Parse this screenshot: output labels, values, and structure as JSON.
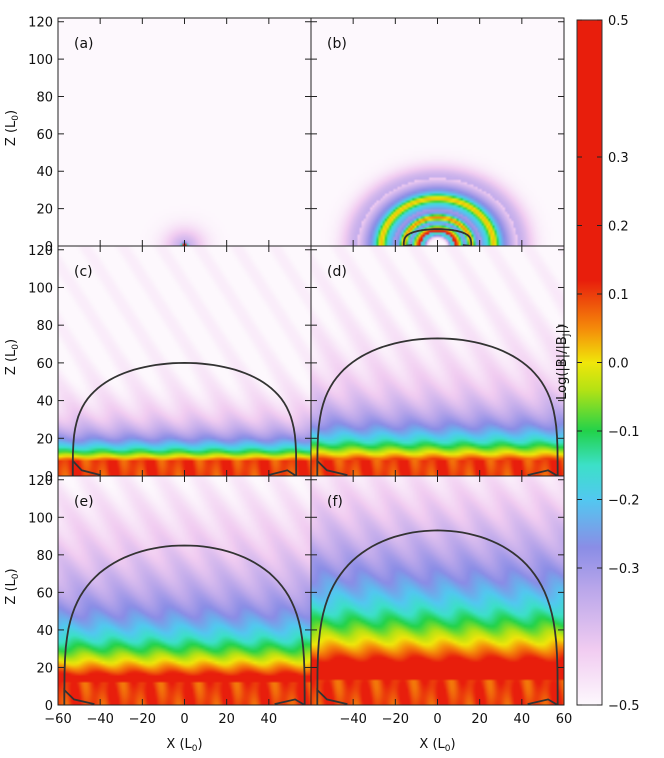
{
  "chart_data": {
    "type": "heatmap",
    "colorbar": {
      "label": "Log(|B|/|B",
      "label_sub": "J",
      "label_end": "|)",
      "range": [
        -0.5,
        0.5
      ],
      "ticks": [
        0.5,
        0.3,
        0.2,
        0.1,
        0.0,
        -0.1,
        -0.2,
        -0.3,
        -0.5
      ],
      "tick_labels": [
        "0.5",
        "0.3",
        "0.2",
        "0.1",
        "0.0",
        "−0.1",
        "−0.2",
        "−0.3",
        "−0.5"
      ],
      "stops": [
        {
          "v": -0.5,
          "color": "#fdf8fd"
        },
        {
          "v": -0.42,
          "color": "#f1ccf1"
        },
        {
          "v": -0.33,
          "color": "#b9a6ea"
        },
        {
          "v": -0.27,
          "color": "#8a8de6"
        },
        {
          "v": -0.2,
          "color": "#52c8f0"
        },
        {
          "v": -0.15,
          "color": "#3ce0c8"
        },
        {
          "v": -0.1,
          "color": "#22d24a"
        },
        {
          "v": -0.04,
          "color": "#b4e214"
        },
        {
          "v": 0.0,
          "color": "#f0e60a"
        },
        {
          "v": 0.05,
          "color": "#f58a0a"
        },
        {
          "v": 0.12,
          "color": "#e81e0c"
        },
        {
          "v": 0.3,
          "color": "#e81e0c"
        },
        {
          "v": 0.5,
          "color": "#e81e0c"
        }
      ]
    },
    "x_axis": {
      "label": "X (L",
      "label_sub": "0",
      "label_end": ")",
      "range": [
        -60,
        60
      ],
      "ticks_left": [
        -60,
        -40,
        -20,
        0,
        20,
        40
      ],
      "ticks_right": [
        -40,
        -20,
        0,
        20,
        40,
        60
      ]
    },
    "y_axis": {
      "label": "Z (L",
      "label_sub": "0",
      "label_end": ")",
      "range": [
        0,
        122
      ],
      "ticks": [
        0,
        20,
        40,
        60,
        80,
        100,
        120
      ]
    },
    "panels": [
      {
        "label": "(a)",
        "row": 0,
        "col": 0,
        "stage": 0,
        "contour_top": null,
        "contour_halfwidth": null
      },
      {
        "label": "(b)",
        "row": 0,
        "col": 1,
        "stage": 1,
        "contour_top": 9,
        "contour_halfwidth": 16
      },
      {
        "label": "(c)",
        "row": 1,
        "col": 0,
        "stage": 2,
        "contour_top": 60,
        "contour_halfwidth": 53
      },
      {
        "label": "(d)",
        "row": 1,
        "col": 1,
        "stage": 3,
        "contour_top": 73,
        "contour_halfwidth": 57
      },
      {
        "label": "(e)",
        "row": 2,
        "col": 0,
        "stage": 4,
        "contour_top": 85,
        "contour_halfwidth": 57
      },
      {
        "label": "(f)",
        "row": 2,
        "col": 1,
        "stage": 5,
        "contour_top": 93,
        "contour_halfwidth": 57
      }
    ]
  }
}
